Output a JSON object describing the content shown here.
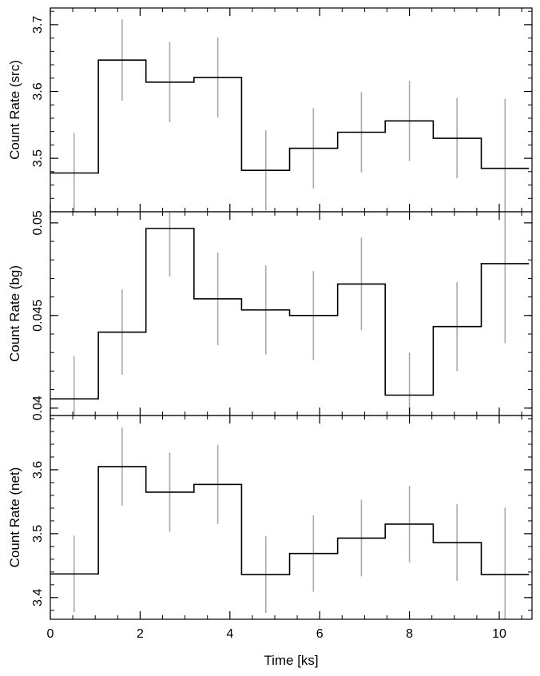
{
  "chart_data": [
    {
      "type": "line",
      "step": true,
      "ylabel": "Count Rate (src)",
      "ylim": [
        3.42,
        3.725
      ],
      "yticks_major": [
        3.5,
        3.6,
        3.7
      ],
      "ytick_labels": [
        "3.5",
        "3.6",
        "3.7"
      ],
      "yticks_minor_step": 0.02,
      "bins": [
        0,
        1.07,
        2.13,
        3.2,
        4.26,
        5.33,
        6.4,
        7.46,
        8.53,
        9.6,
        10.66
      ],
      "x": [
        0.53,
        1.6,
        2.66,
        3.73,
        4.8,
        5.86,
        6.93,
        8.0,
        9.06,
        10.13
      ],
      "values": [
        3.478,
        3.647,
        3.614,
        3.621,
        3.482,
        3.515,
        3.539,
        3.556,
        3.53,
        3.485
      ],
      "errors": [
        0.06,
        0.061,
        0.06,
        0.06,
        0.06,
        0.06,
        0.06,
        0.06,
        0.06,
        0.104
      ]
    },
    {
      "type": "line",
      "step": true,
      "ylabel": "Count Rate (bg)",
      "ylim": [
        0.0396,
        0.0506
      ],
      "yticks_major": [
        0.04,
        0.045,
        0.05
      ],
      "ytick_labels": [
        "0.04",
        "0.045",
        "0.05"
      ],
      "yticks_minor_step": 0.001,
      "bins": [
        0,
        1.07,
        2.13,
        3.2,
        4.26,
        5.33,
        6.4,
        7.46,
        8.53,
        9.6,
        10.66
      ],
      "x": [
        0.53,
        1.6,
        2.66,
        3.73,
        4.8,
        5.86,
        6.93,
        8.0,
        9.06,
        10.13
      ],
      "values": [
        0.0405,
        0.0441,
        0.0497,
        0.0459,
        0.0453,
        0.045,
        0.0467,
        0.0407,
        0.0444,
        0.0478
      ],
      "errors": [
        0.0023,
        0.0023,
        0.0026,
        0.0025,
        0.0024,
        0.0024,
        0.0025,
        0.0023,
        0.0024,
        0.0043
      ]
    },
    {
      "type": "line",
      "step": true,
      "ylabel": "Count Rate (net)",
      "ylim": [
        3.366,
        3.685
      ],
      "yticks_major": [
        3.4,
        3.5,
        3.6
      ],
      "ytick_labels": [
        "3.4",
        "3.5",
        "3.6"
      ],
      "yticks_minor_step": 0.02,
      "bins": [
        0,
        1.07,
        2.13,
        3.2,
        4.26,
        5.33,
        6.4,
        7.46,
        8.53,
        9.6,
        10.66
      ],
      "x": [
        0.53,
        1.6,
        2.66,
        3.73,
        4.8,
        5.86,
        6.93,
        8.0,
        9.06,
        10.13
      ],
      "values": [
        3.437,
        3.605,
        3.565,
        3.577,
        3.436,
        3.469,
        3.493,
        3.515,
        3.486,
        3.436
      ],
      "errors": [
        0.06,
        0.061,
        0.062,
        0.062,
        0.06,
        0.06,
        0.06,
        0.06,
        0.06,
        0.105
      ]
    }
  ],
  "x_axis": {
    "label": "Time [ks]",
    "xlim": [
      0,
      10.73
    ],
    "ticks_major": [
      0,
      2,
      4,
      6,
      8,
      10
    ],
    "tick_labels": [
      "0",
      "2",
      "4",
      "6",
      "8",
      "10"
    ],
    "minor_step": 0.5
  },
  "colors": {
    "line": "#000000",
    "error_bar": "#aaaaaa",
    "frame": "#000000"
  }
}
